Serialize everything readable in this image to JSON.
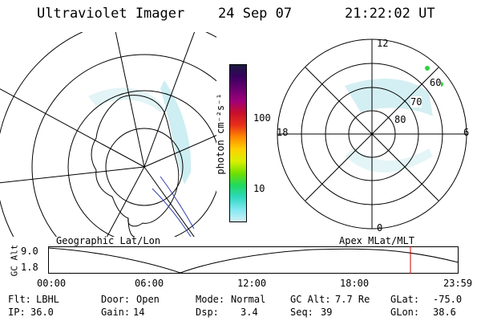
{
  "header": {
    "instrument": "Ultraviolet Imager",
    "date": "24 Sep 07",
    "time": "21:22:02 UT"
  },
  "geo_panel": {
    "label": "Geographic Lat/Lon"
  },
  "apex_panel": {
    "label": "Apex MLat/MLT",
    "mlt_labels": {
      "top": "12",
      "left": "18",
      "right": "6",
      "bottom": "0"
    },
    "mlat_labels": [
      "60",
      "70",
      "80"
    ]
  },
  "colorbar": {
    "unit_label": "photon cm⁻²s⁻¹",
    "ticks": [
      "100",
      "10"
    ],
    "colors": [
      "#1a1a40",
      "#3a0060",
      "#6a0070",
      "#a0007a",
      "#c8102a",
      "#e8301a",
      "#ff8a00",
      "#ffd000",
      "#d8f000",
      "#70e000",
      "#20d860",
      "#30d8c0",
      "#80e8f0",
      "#d0f0f8"
    ]
  },
  "altitude_plot": {
    "y_label": "GC Alt",
    "y_ticks": [
      "9.0",
      "1.8"
    ],
    "x_ticks": [
      "00:00",
      "06:00",
      "12:00",
      "18:00",
      "23:59"
    ],
    "marker_color": "#cc0000"
  },
  "status": {
    "row1": [
      {
        "label": "Flt:",
        "value": "LBHL"
      },
      {
        "label": "Door:",
        "value": "Open"
      },
      {
        "label": "Mode:",
        "value": "Normal"
      },
      {
        "label": "GC Alt:",
        "value": "7.7 Re"
      },
      {
        "label": "GLat:",
        "value": "-75.0"
      }
    ],
    "row2": [
      {
        "label": "IP:",
        "value": "36.0"
      },
      {
        "label": "Gain:",
        "value": "14"
      },
      {
        "label": "Dsp:",
        "value": "3.4"
      },
      {
        "label": "Seq:",
        "value": "39"
      },
      {
        "label": "GLon:",
        "value": "38.6"
      }
    ]
  }
}
